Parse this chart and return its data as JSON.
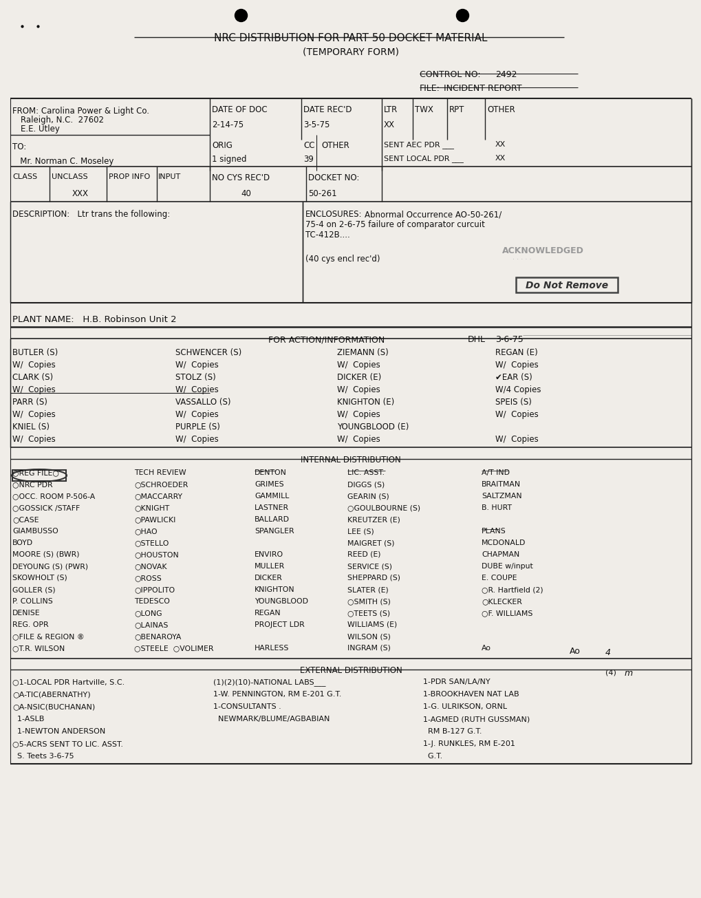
{
  "bg_color": "#f0ede8",
  "text_color": "#111111",
  "title_line1": "NRC DISTRIBUTION FOR PART 50 DOCKET MATERIAL",
  "title_line2": "(TEMPORARY FORM)",
  "action_col1": [
    "BUTLER (S)",
    "W/  Copies",
    "CLARK (S)",
    "W/  Copies",
    "PARR (S)",
    "W/  Copies",
    "KNIEL (S)",
    "W/  Copies"
  ],
  "action_col2": [
    "SCHWENCER (S)",
    "W/  Copies",
    "STOLZ (S)",
    "W/  Copies",
    "VASSALLO (S)",
    "W/  Copies",
    "PURPLE (S)",
    "W/  Copies"
  ],
  "action_col3": [
    "ZIEMANN (S)",
    "W/  Copies",
    "DICKER (E)",
    "W/  Copies",
    "KNIGHTON (E)",
    "W/  Copies",
    "YOUNGBLOOD (E)",
    "W/  Copies"
  ],
  "action_col4": [
    "REGAN (E)",
    "W/  Copies",
    "✔EAR (S)",
    "W/4 Copies",
    "SPEIS (S)",
    "W/  Copies",
    "",
    "W/  Copies"
  ],
  "int_col1": [
    "○REG FILE○",
    "○NRC PDR",
    "○OCC. ROOM P-506-A",
    "○GOSSICK /STAFF",
    "○CASE",
    "GIAMBUSSO",
    "BOYD",
    "MOORE (S) (BWR)",
    "DEYOUNG (S) (PWR)",
    "SKOWHOLT (S)",
    "GOLLER (S)",
    "P. COLLINS",
    "DENISE",
    "REG. OPR",
    "○FILE & REGION ®",
    "○T.R. WILSON"
  ],
  "int_col2": [
    "TECH REVIEW",
    "○SCHROEDER",
    "○MACCARRY",
    "○KNIGHT",
    "○PAWLICKI",
    "○HAO",
    "○STELLO",
    "○HOUSTON",
    "○NOVAK",
    "○ROSS",
    "○IPPOLITO",
    "TEDESCO",
    "○LONG",
    "○LAINAS",
    "○BENAROYA",
    "○STEELE  ○VOLIMER"
  ],
  "int_col3": [
    "DENTON",
    "GRIMES",
    "GAMMILL",
    "LASTNER",
    "BALLARD",
    "SPANGLER",
    "",
    "ENVIRO",
    "MULLER",
    "DICKER",
    "KNIGHTON",
    "YOUNGBLOOD",
    "REGAN",
    "PROJECT LDR",
    "",
    "HARLESS"
  ],
  "int_col4": [
    "LIC. ASST.",
    "DIGGS (S)",
    "GEARIN (S)",
    "○GOULBOURNE (S)",
    "KREUTZER (E)",
    "LEE (S)",
    "MAIGRET (S)",
    "REED (E)",
    "SERVICE (S)",
    "SHEPPARD (S)",
    "SLATER (E)",
    "○SMITH (S)",
    "○TEETS (S)",
    "WILLIAMS (E)",
    "WILSON (S)",
    "INGRAM (S)"
  ],
  "int_col5": [
    "A/T IND",
    "BRAITMAN",
    "SALTZMAN",
    "B. HURT",
    "",
    "PLANS",
    "MCDONALD",
    "CHAPMAN",
    "DUBE w/input",
    "E. COUPE",
    "○R. Hartfield (2)",
    "○KLECKER",
    "○F. WILLIAMS",
    "",
    "",
    "Ao"
  ],
  "ext_col1": [
    "○1-LOCAL PDR Hartville, S.C.",
    "○A-TIC(ABERNATHY)",
    "○A-NSIC(BUCHANAN)",
    "  1-ASLB",
    "  1-NEWTON ANDERSON",
    "○5-ACRS SENT TO LIC. ASST.",
    "  S. Teets 3-6-75"
  ],
  "ext_col2": [
    "(1)(2)(10)-NATIONAL LABS___",
    "1-W. PENNINGTON, RM E-201 G.T.",
    "1-CONSULTANTS .",
    "  NEWMARK/BLUME/AGBABIAN"
  ],
  "ext_col3": [
    "1-PDR SAN/LA/NY",
    "1-BROOKHAVEN NAT LAB",
    "1-G. ULRIKSON, ORNL",
    "1-AGMED (RUTH GUSSMAN)",
    "  RM B-127 G.T.",
    "1-J. RUNKLES, RM E-201",
    "  G.T."
  ]
}
